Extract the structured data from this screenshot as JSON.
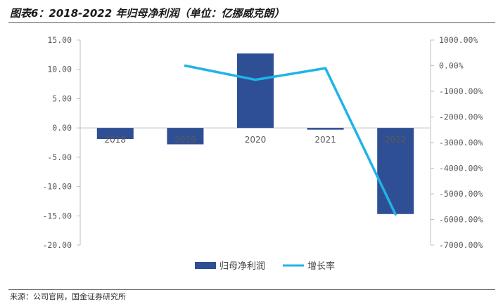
{
  "title": "图表6：2018-2022 年归母净利润（单位：亿挪威克朗）",
  "source": "来源：公司官网，国金证券研究所",
  "chart_data": {
    "type": "bar",
    "title": "图表6：2018-2022 年归母净利润（单位：亿挪威克朗）",
    "categories": [
      "2018",
      "2019",
      "2020",
      "2021",
      "2022"
    ],
    "series": [
      {
        "name": "归母净利润",
        "type": "bar",
        "axis": "left",
        "color": "#2f4f95",
        "values": [
          -1.9,
          -2.8,
          12.7,
          -0.3,
          -14.7
        ]
      },
      {
        "name": "增长率",
        "type": "line",
        "axis": "right",
        "color": "#1fb3e8",
        "values": [
          null,
          0.0,
          -550.0,
          -100.0,
          -5800.0
        ]
      }
    ],
    "y_left": {
      "min": -20,
      "max": 15,
      "step": 5,
      "tick_labels": [
        "15.00",
        "10.00",
        "5.00",
        "0.00",
        "-5.00",
        "-10.00",
        "-15.00",
        "-20.00"
      ]
    },
    "y_right": {
      "min": -7000,
      "max": 1000,
      "step": 1000,
      "tick_labels": [
        "1000.00%",
        "0.00%",
        "-1000.00%",
        "-2000.00%",
        "-3000.00%",
        "-4000.00%",
        "-5000.00%",
        "-6000.00%",
        "-7000.00%"
      ]
    },
    "grid": false,
    "legend": "bottom-center"
  }
}
